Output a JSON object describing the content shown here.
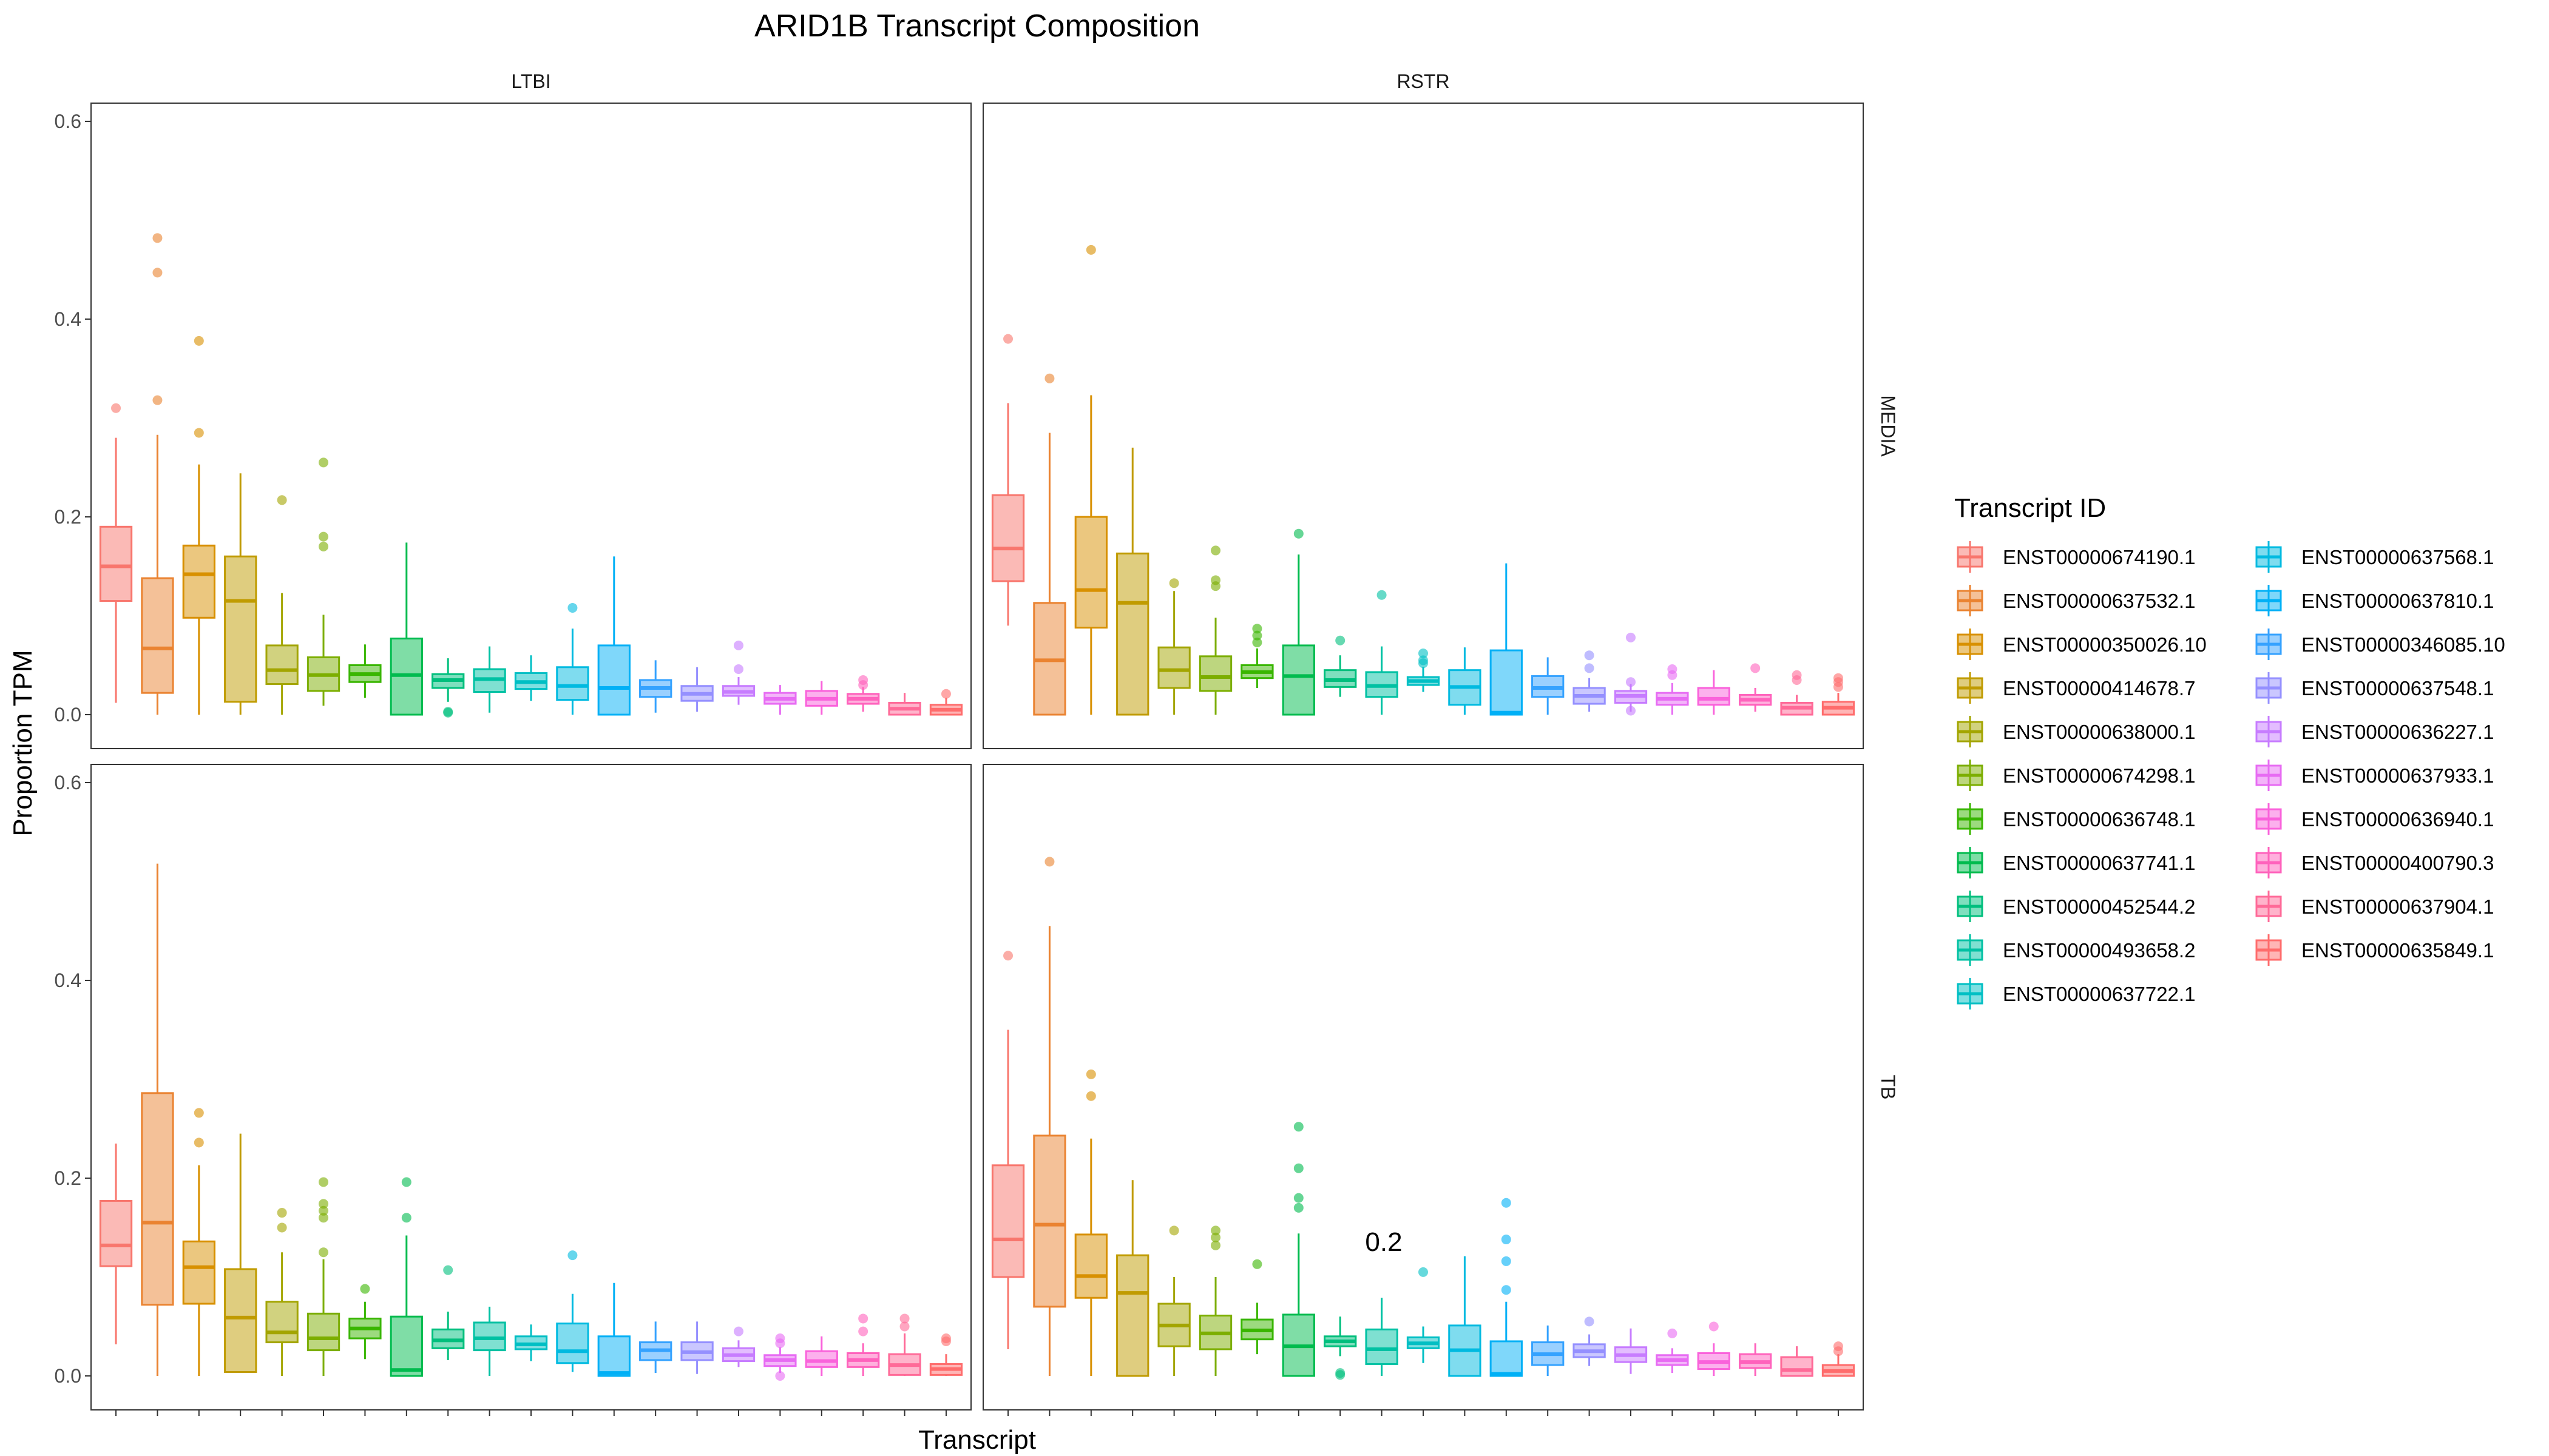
{
  "chart_data": {
    "type": "boxplot",
    "title": "ARID1B Transcript Composition",
    "xlabel": "Transcript",
    "ylabel": "Proportion TPM",
    "ylim": [
      0,
      0.6
    ],
    "yticks": [
      "0.0",
      "0.2",
      "0.4",
      "0.6"
    ],
    "facet_cols": [
      "LTBI",
      "RSTR"
    ],
    "facet_rows": [
      "MEDIA",
      "TB"
    ],
    "legend_title": "Transcript ID",
    "legend_position": "right",
    "grid": false,
    "annotation": {
      "text": "0.2",
      "panel": "TB-RSTR",
      "x_index": 10,
      "y": 0.13
    },
    "series": [
      {
        "name": "ENST00000674190.1",
        "color": "#F8766D"
      },
      {
        "name": "ENST00000637532.1",
        "color": "#EA8331"
      },
      {
        "name": "ENST00000350026.10",
        "color": "#D89000"
      },
      {
        "name": "ENST00000414678.7",
        "color": "#C09B00"
      },
      {
        "name": "ENST00000638000.1",
        "color": "#A3A500"
      },
      {
        "name": "ENST00000674298.1",
        "color": "#7CAE00"
      },
      {
        "name": "ENST00000636748.1",
        "color": "#39B600"
      },
      {
        "name": "ENST00000637741.1",
        "color": "#00BB4E"
      },
      {
        "name": "ENST00000452544.2",
        "color": "#00BF7D"
      },
      {
        "name": "ENST00000493658.2",
        "color": "#00C1A3"
      },
      {
        "name": "ENST00000637722.1",
        "color": "#00BFC4"
      },
      {
        "name": "ENST00000637568.1",
        "color": "#00BAE0"
      },
      {
        "name": "ENST00000637810.1",
        "color": "#00B0F6"
      },
      {
        "name": "ENST00000346085.10",
        "color": "#35A2FF"
      },
      {
        "name": "ENST00000637548.1",
        "color": "#9590FF"
      },
      {
        "name": "ENST00000636227.1",
        "color": "#C77CFF"
      },
      {
        "name": "ENST00000637933.1",
        "color": "#E76BF3"
      },
      {
        "name": "ENST00000636940.1",
        "color": "#FA62DB"
      },
      {
        "name": "ENST00000400790.3",
        "color": "#FF62BC"
      },
      {
        "name": "ENST00000637904.1",
        "color": "#FF6A98"
      },
      {
        "name": "ENST00000635849.1",
        "color": "#FF6C6C"
      }
    ],
    "panels": [
      {
        "row": "MEDIA",
        "col": "LTBI",
        "boxes": [
          {
            "q1": 0.115,
            "med": 0.15,
            "q3": 0.19,
            "lo": 0.012,
            "hi": 0.28,
            "out": [
              0.31
            ]
          },
          {
            "q1": 0.022,
            "med": 0.067,
            "q3": 0.138,
            "lo": 0.0,
            "hi": 0.283,
            "out": [
              0.318,
              0.447,
              0.482
            ]
          },
          {
            "q1": 0.098,
            "med": 0.142,
            "q3": 0.171,
            "lo": 0.0,
            "hi": 0.253,
            "out": [
              0.285,
              0.378
            ]
          },
          {
            "q1": 0.013,
            "med": 0.115,
            "q3": 0.16,
            "lo": 0.0,
            "hi": 0.244,
            "out": []
          },
          {
            "q1": 0.031,
            "med": 0.045,
            "q3": 0.07,
            "lo": 0.0,
            "hi": 0.123,
            "out": [
              0.217
            ]
          },
          {
            "q1": 0.024,
            "med": 0.04,
            "q3": 0.058,
            "lo": 0.009,
            "hi": 0.101,
            "out": [
              0.17,
              0.18,
              0.255
            ]
          },
          {
            "q1": 0.033,
            "med": 0.041,
            "q3": 0.05,
            "lo": 0.017,
            "hi": 0.071,
            "out": []
          },
          {
            "q1": 0.0,
            "med": 0.04,
            "q3": 0.077,
            "lo": 0.0,
            "hi": 0.174,
            "out": []
          },
          {
            "q1": 0.027,
            "med": 0.035,
            "q3": 0.041,
            "lo": 0.013,
            "hi": 0.057,
            "out": [
              0.002,
              0.003
            ]
          },
          {
            "q1": 0.023,
            "med": 0.036,
            "q3": 0.046,
            "lo": 0.002,
            "hi": 0.069,
            "out": []
          },
          {
            "q1": 0.026,
            "med": 0.033,
            "q3": 0.042,
            "lo": 0.014,
            "hi": 0.06,
            "out": []
          },
          {
            "q1": 0.015,
            "med": 0.029,
            "q3": 0.048,
            "lo": 0.0,
            "hi": 0.087,
            "out": [
              0.108
            ]
          },
          {
            "q1": 0.0,
            "med": 0.027,
            "q3": 0.07,
            "lo": 0.0,
            "hi": 0.16,
            "out": []
          },
          {
            "q1": 0.018,
            "med": 0.027,
            "q3": 0.035,
            "lo": 0.002,
            "hi": 0.055,
            "out": []
          },
          {
            "q1": 0.014,
            "med": 0.021,
            "q3": 0.029,
            "lo": 0.003,
            "hi": 0.048,
            "out": []
          },
          {
            "q1": 0.019,
            "med": 0.023,
            "q3": 0.029,
            "lo": 0.01,
            "hi": 0.038,
            "out": [
              0.046,
              0.07
            ]
          },
          {
            "q1": 0.011,
            "med": 0.016,
            "q3": 0.022,
            "lo": 0.0,
            "hi": 0.03,
            "out": []
          },
          {
            "q1": 0.009,
            "med": 0.016,
            "q3": 0.024,
            "lo": 0.0,
            "hi": 0.034,
            "out": []
          },
          {
            "q1": 0.011,
            "med": 0.016,
            "q3": 0.021,
            "lo": 0.003,
            "hi": 0.028,
            "out": [
              0.03,
              0.035
            ]
          },
          {
            "q1": 0.0,
            "med": 0.006,
            "q3": 0.012,
            "lo": 0.0,
            "hi": 0.022,
            "out": []
          },
          {
            "q1": 0.0,
            "med": 0.005,
            "q3": 0.01,
            "lo": 0.0,
            "hi": 0.017,
            "out": [
              0.021
            ]
          }
        ]
      },
      {
        "row": "MEDIA",
        "col": "RSTR",
        "boxes": [
          {
            "q1": 0.135,
            "med": 0.168,
            "q3": 0.222,
            "lo": 0.09,
            "hi": 0.315,
            "out": [
              0.38
            ]
          },
          {
            "q1": 0.0,
            "med": 0.055,
            "q3": 0.113,
            "lo": 0.0,
            "hi": 0.285,
            "out": [
              0.34
            ]
          },
          {
            "q1": 0.088,
            "med": 0.126,
            "q3": 0.2,
            "lo": 0.0,
            "hi": 0.323,
            "out": [
              0.47
            ]
          },
          {
            "q1": 0.0,
            "med": 0.113,
            "q3": 0.163,
            "lo": 0.0,
            "hi": 0.27,
            "out": []
          },
          {
            "q1": 0.027,
            "med": 0.045,
            "q3": 0.068,
            "lo": 0.0,
            "hi": 0.125,
            "out": [
              0.133
            ]
          },
          {
            "q1": 0.024,
            "med": 0.038,
            "q3": 0.059,
            "lo": 0.0,
            "hi": 0.098,
            "out": [
              0.13,
              0.136,
              0.166
            ]
          },
          {
            "q1": 0.037,
            "med": 0.043,
            "q3": 0.05,
            "lo": 0.027,
            "hi": 0.067,
            "out": [
              0.073,
              0.08,
              0.087
            ]
          },
          {
            "q1": 0.0,
            "med": 0.039,
            "q3": 0.07,
            "lo": 0.0,
            "hi": 0.162,
            "out": [
              0.183
            ]
          },
          {
            "q1": 0.028,
            "med": 0.035,
            "q3": 0.045,
            "lo": 0.018,
            "hi": 0.06,
            "out": [
              0.075
            ]
          },
          {
            "q1": 0.018,
            "med": 0.029,
            "q3": 0.043,
            "lo": 0.0,
            "hi": 0.069,
            "out": [
              0.121
            ]
          },
          {
            "q1": 0.03,
            "med": 0.034,
            "q3": 0.038,
            "lo": 0.023,
            "hi": 0.048,
            "out": [
              0.052,
              0.055,
              0.062
            ]
          },
          {
            "q1": 0.01,
            "med": 0.028,
            "q3": 0.045,
            "lo": 0.0,
            "hi": 0.068,
            "out": []
          },
          {
            "q1": 0.0,
            "med": 0.002,
            "q3": 0.065,
            "lo": 0.0,
            "hi": 0.153,
            "out": []
          },
          {
            "q1": 0.018,
            "med": 0.027,
            "q3": 0.039,
            "lo": 0.0,
            "hi": 0.058,
            "out": []
          },
          {
            "q1": 0.011,
            "med": 0.019,
            "q3": 0.027,
            "lo": 0.003,
            "hi": 0.037,
            "out": [
              0.047,
              0.06
            ]
          },
          {
            "q1": 0.012,
            "med": 0.019,
            "q3": 0.024,
            "lo": 0.003,
            "hi": 0.031,
            "out": [
              0.004,
              0.033,
              0.078
            ]
          },
          {
            "q1": 0.01,
            "med": 0.016,
            "q3": 0.022,
            "lo": 0.0,
            "hi": 0.032,
            "out": [
              0.04,
              0.046
            ]
          },
          {
            "q1": 0.01,
            "med": 0.016,
            "q3": 0.027,
            "lo": 0.0,
            "hi": 0.045,
            "out": []
          },
          {
            "q1": 0.01,
            "med": 0.015,
            "q3": 0.02,
            "lo": 0.003,
            "hi": 0.027,
            "out": [
              0.047
            ]
          },
          {
            "q1": 0.0,
            "med": 0.007,
            "q3": 0.012,
            "lo": 0.0,
            "hi": 0.02,
            "out": [
              0.035,
              0.04
            ]
          },
          {
            "q1": 0.0,
            "med": 0.007,
            "q3": 0.013,
            "lo": 0.0,
            "hi": 0.022,
            "out": [
              0.028,
              0.033,
              0.037
            ]
          }
        ]
      },
      {
        "row": "TB",
        "col": "LTBI",
        "boxes": [
          {
            "q1": 0.111,
            "med": 0.132,
            "q3": 0.177,
            "lo": 0.032,
            "hi": 0.235,
            "out": []
          },
          {
            "q1": 0.072,
            "med": 0.155,
            "q3": 0.286,
            "lo": 0.0,
            "hi": 0.518,
            "out": []
          },
          {
            "q1": 0.073,
            "med": 0.11,
            "q3": 0.136,
            "lo": 0.0,
            "hi": 0.213,
            "out": [
              0.236,
              0.266
            ]
          },
          {
            "q1": 0.004,
            "med": 0.059,
            "q3": 0.108,
            "lo": 0.004,
            "hi": 0.245,
            "out": []
          },
          {
            "q1": 0.034,
            "med": 0.044,
            "q3": 0.075,
            "lo": 0.0,
            "hi": 0.125,
            "out": [
              0.15,
              0.165
            ]
          },
          {
            "q1": 0.026,
            "med": 0.038,
            "q3": 0.063,
            "lo": 0.0,
            "hi": 0.118,
            "out": [
              0.125,
              0.16,
              0.167,
              0.174,
              0.196
            ]
          },
          {
            "q1": 0.038,
            "med": 0.048,
            "q3": 0.058,
            "lo": 0.017,
            "hi": 0.075,
            "out": [
              0.088
            ]
          },
          {
            "q1": 0.0,
            "med": 0.006,
            "q3": 0.06,
            "lo": 0.0,
            "hi": 0.142,
            "out": [
              0.16,
              0.196
            ]
          },
          {
            "q1": 0.028,
            "med": 0.036,
            "q3": 0.047,
            "lo": 0.016,
            "hi": 0.065,
            "out": [
              0.107
            ]
          },
          {
            "q1": 0.026,
            "med": 0.038,
            "q3": 0.054,
            "lo": 0.0,
            "hi": 0.07,
            "out": []
          },
          {
            "q1": 0.027,
            "med": 0.032,
            "q3": 0.04,
            "lo": 0.015,
            "hi": 0.052,
            "out": []
          },
          {
            "q1": 0.013,
            "med": 0.025,
            "q3": 0.053,
            "lo": 0.004,
            "hi": 0.083,
            "out": [
              0.122
            ]
          },
          {
            "q1": 0.0,
            "med": 0.003,
            "q3": 0.04,
            "lo": 0.0,
            "hi": 0.094,
            "out": []
          },
          {
            "q1": 0.016,
            "med": 0.026,
            "q3": 0.034,
            "lo": 0.003,
            "hi": 0.055,
            "out": []
          },
          {
            "q1": 0.016,
            "med": 0.024,
            "q3": 0.034,
            "lo": 0.002,
            "hi": 0.055,
            "out": []
          },
          {
            "q1": 0.015,
            "med": 0.021,
            "q3": 0.028,
            "lo": 0.009,
            "hi": 0.036,
            "out": [
              0.045
            ]
          },
          {
            "q1": 0.01,
            "med": 0.016,
            "q3": 0.021,
            "lo": 0.003,
            "hi": 0.029,
            "out": [
              0.0,
              0.033,
              0.038
            ]
          },
          {
            "q1": 0.009,
            "med": 0.015,
            "q3": 0.025,
            "lo": 0.0,
            "hi": 0.04,
            "out": []
          },
          {
            "q1": 0.009,
            "med": 0.016,
            "q3": 0.023,
            "lo": 0.0,
            "hi": 0.033,
            "out": [
              0.045,
              0.058
            ]
          },
          {
            "q1": 0.001,
            "med": 0.011,
            "q3": 0.022,
            "lo": 0.0,
            "hi": 0.043,
            "out": [
              0.05,
              0.058
            ]
          },
          {
            "q1": 0.001,
            "med": 0.007,
            "q3": 0.012,
            "lo": 0.0,
            "hi": 0.022,
            "out": [
              0.035,
              0.038
            ]
          }
        ]
      },
      {
        "row": "TB",
        "col": "RSTR",
        "boxes": [
          {
            "q1": 0.1,
            "med": 0.138,
            "q3": 0.213,
            "lo": 0.027,
            "hi": 0.35,
            "out": [
              0.425
            ]
          },
          {
            "q1": 0.07,
            "med": 0.153,
            "q3": 0.243,
            "lo": 0.0,
            "hi": 0.455,
            "out": [
              0.52
            ]
          },
          {
            "q1": 0.079,
            "med": 0.101,
            "q3": 0.143,
            "lo": 0.0,
            "hi": 0.24,
            "out": [
              0.283,
              0.305
            ]
          },
          {
            "q1": 0.0,
            "med": 0.084,
            "q3": 0.122,
            "lo": 0.0,
            "hi": 0.198,
            "out": []
          },
          {
            "q1": 0.03,
            "med": 0.051,
            "q3": 0.073,
            "lo": 0.0,
            "hi": 0.1,
            "out": [
              0.147
            ]
          },
          {
            "q1": 0.027,
            "med": 0.043,
            "q3": 0.061,
            "lo": 0.0,
            "hi": 0.1,
            "out": [
              0.132,
              0.14,
              0.147
            ]
          },
          {
            "q1": 0.037,
            "med": 0.046,
            "q3": 0.057,
            "lo": 0.022,
            "hi": 0.074,
            "out": [
              0.113
            ]
          },
          {
            "q1": 0.0,
            "med": 0.03,
            "q3": 0.062,
            "lo": 0.0,
            "hi": 0.144,
            "out": [
              0.17,
              0.18,
              0.21,
              0.252
            ]
          },
          {
            "q1": 0.03,
            "med": 0.035,
            "q3": 0.04,
            "lo": 0.02,
            "hi": 0.06,
            "out": [
              0.001,
              0.003
            ]
          },
          {
            "q1": 0.012,
            "med": 0.027,
            "q3": 0.047,
            "lo": 0.0,
            "hi": 0.079,
            "out": []
          },
          {
            "q1": 0.028,
            "med": 0.033,
            "q3": 0.039,
            "lo": 0.013,
            "hi": 0.05,
            "out": [
              0.105
            ]
          },
          {
            "q1": 0.0,
            "med": 0.026,
            "q3": 0.051,
            "lo": 0.0,
            "hi": 0.121,
            "out": []
          },
          {
            "q1": 0.0,
            "med": 0.002,
            "q3": 0.035,
            "lo": 0.0,
            "hi": 0.075,
            "out": [
              0.087,
              0.116,
              0.138,
              0.175
            ]
          },
          {
            "q1": 0.011,
            "med": 0.022,
            "q3": 0.034,
            "lo": 0.0,
            "hi": 0.051,
            "out": []
          },
          {
            "q1": 0.019,
            "med": 0.025,
            "q3": 0.032,
            "lo": 0.01,
            "hi": 0.042,
            "out": [
              0.055
            ]
          },
          {
            "q1": 0.014,
            "med": 0.021,
            "q3": 0.029,
            "lo": 0.002,
            "hi": 0.048,
            "out": []
          },
          {
            "q1": 0.011,
            "med": 0.016,
            "q3": 0.021,
            "lo": 0.003,
            "hi": 0.028,
            "out": [
              0.043
            ]
          },
          {
            "q1": 0.007,
            "med": 0.014,
            "q3": 0.023,
            "lo": 0.0,
            "hi": 0.033,
            "out": [
              0.05
            ]
          },
          {
            "q1": 0.008,
            "med": 0.014,
            "q3": 0.022,
            "lo": 0.0,
            "hi": 0.033,
            "out": []
          },
          {
            "q1": 0.0,
            "med": 0.006,
            "q3": 0.019,
            "lo": 0.0,
            "hi": 0.03,
            "out": []
          },
          {
            "q1": 0.0,
            "med": 0.005,
            "q3": 0.011,
            "lo": 0.0,
            "hi": 0.022,
            "out": [
              0.025,
              0.03
            ]
          }
        ]
      }
    ]
  }
}
